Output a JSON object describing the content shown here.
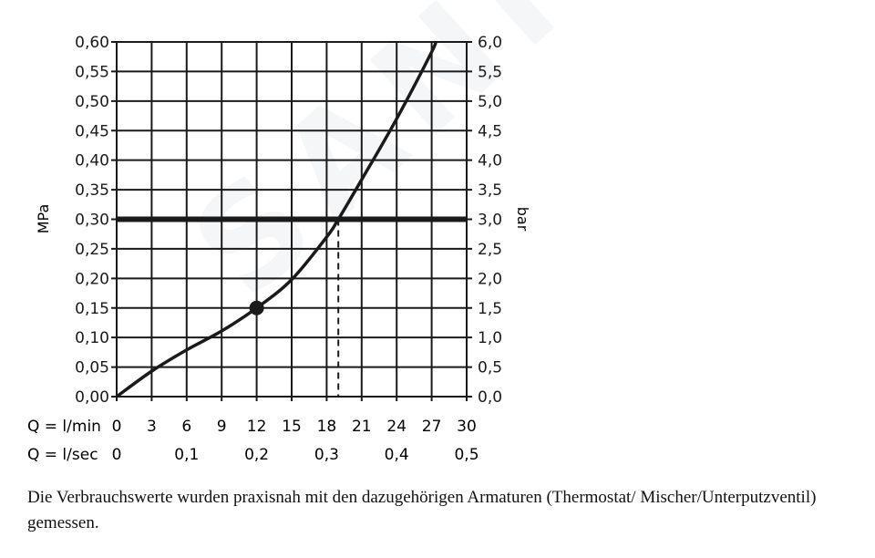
{
  "chart_data": {
    "type": "line",
    "title": "",
    "ylabel_left": "MPa",
    "ylabel_right": "bar",
    "x_label_rows": [
      {
        "label": "Q = l/min",
        "ticks": [
          "0",
          "3",
          "6",
          "9",
          "12",
          "15",
          "18",
          "21",
          "24",
          "27",
          "30"
        ],
        "values": [
          0,
          3,
          6,
          9,
          12,
          15,
          18,
          21,
          24,
          27,
          30
        ]
      },
      {
        "label": "Q = l/sec",
        "ticks": [
          "0",
          "0,1",
          "0,2",
          "0,3",
          "0,4",
          "0,5"
        ],
        "values": [
          0,
          6,
          12,
          18,
          24,
          30
        ]
      }
    ],
    "xlim": [
      0,
      30
    ],
    "ylim": [
      0,
      0.6
    ],
    "y_ticks_left": [
      "0,00",
      "0,05",
      "0,10",
      "0,15",
      "0,20",
      "0,25",
      "0,30",
      "0,35",
      "0,40",
      "0,45",
      "0,50",
      "0,55",
      "0,60"
    ],
    "y_ticks_right": [
      "0,0",
      "0,5",
      "1,0",
      "1,5",
      "2,0",
      "2,5",
      "3,0",
      "3,5",
      "4,0",
      "4,5",
      "5,0",
      "5,5",
      "6,0"
    ],
    "grid": true,
    "series": [
      {
        "x": [
          0,
          3,
          6,
          9,
          12,
          15,
          18,
          19,
          21,
          24,
          27,
          27.3
        ],
        "y": [
          0,
          0.043,
          0.079,
          0.111,
          0.15,
          0.198,
          0.27,
          0.3,
          0.367,
          0.47,
          0.583,
          0.6
        ]
      }
    ],
    "marker_point": {
      "x": 12,
      "y": 0.15
    },
    "reference_line_y": 0.3,
    "dashed_line_x": 19
  },
  "caption": "Die Verbrauchswerte wurden praxisnah mit den dazugehörigen Armaturen (Thermostat/ Mischer/Unterputzventil) gemessen.",
  "watermark": "SANITINO"
}
